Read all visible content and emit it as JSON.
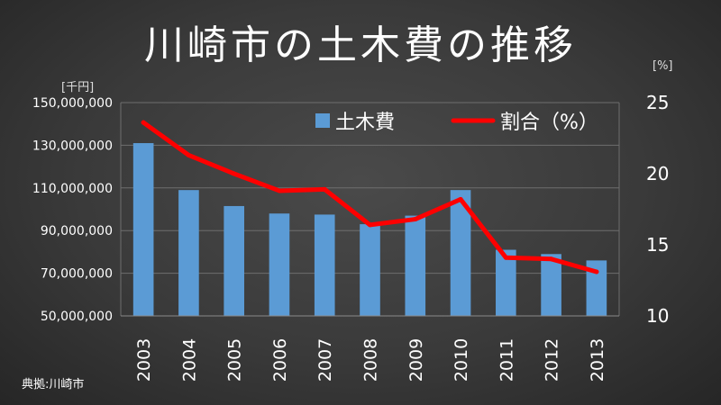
{
  "title": "川崎市の土木費の推移",
  "left_unit": "[千円]",
  "right_unit": "[%]",
  "source": "典拠:川崎市",
  "colors": {
    "bar": "#5b9bd5",
    "line": "#ff0000",
    "grid": "#6e6e6e",
    "text": "#ffffff"
  },
  "chart_data": {
    "type": "bar",
    "categories": [
      "2003",
      "2004",
      "2005",
      "2006",
      "2007",
      "2008",
      "2009",
      "2010",
      "2011",
      "2012",
      "2013"
    ],
    "series": [
      {
        "name": "土木費",
        "type": "bar",
        "axis": "left",
        "values": [
          131000000,
          109000000,
          101500000,
          98000000,
          97500000,
          93000000,
          97000000,
          109000000,
          81000000,
          79000000,
          76000000
        ]
      },
      {
        "name": "割合（%）",
        "type": "line",
        "axis": "right",
        "values": [
          23.6,
          21.3,
          20.0,
          18.8,
          18.9,
          16.4,
          16.8,
          18.2,
          14.1,
          14.0,
          13.1
        ]
      }
    ],
    "y_left": {
      "min": 50000000,
      "max": 150000000,
      "ticks": [
        "50,000,000",
        "70,000,000",
        "90,000,000",
        "110,000,000",
        "130,000,000",
        "150,000,000"
      ]
    },
    "y_right": {
      "min": 10,
      "max": 25,
      "ticks": [
        "10",
        "15",
        "20",
        "25"
      ]
    },
    "grid": true,
    "legend_position": "top-right"
  }
}
